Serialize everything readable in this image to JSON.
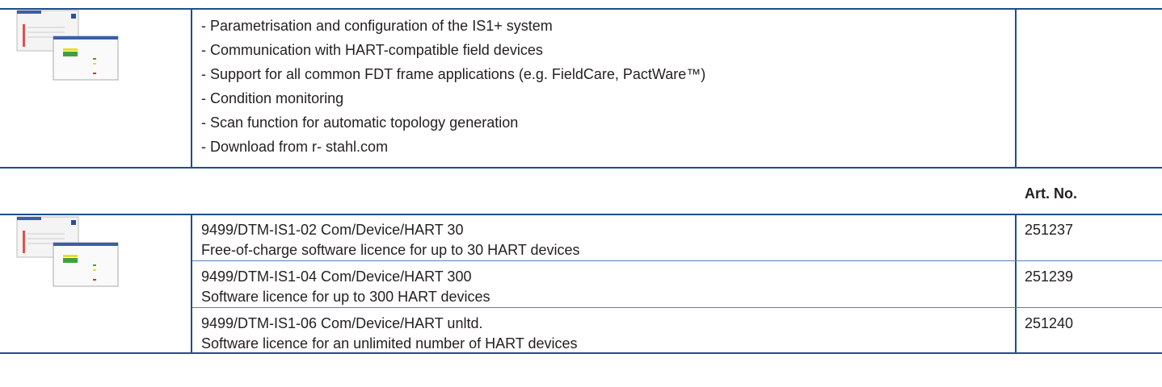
{
  "features": {
    "items": [
      "- Parametrisation and configuration of the IS1+ system",
      "- Communication with HART-compatible field devices",
      "- Support for all common FDT frame applications (e.g. FieldCare, PactWare™)",
      "- Condition monitoring",
      "- Scan function for automatic topology generation",
      "- Download from r- stahl.com"
    ]
  },
  "products": {
    "header": "Art. No.",
    "rows": [
      {
        "name": "9499/DTM-IS1-02 Com/Device/HART 30",
        "description": "Free-of-charge software licence for up to 30 HART devices",
        "art_no": "251237"
      },
      {
        "name": "9499/DTM-IS1-04 Com/Device/HART 300",
        "description": "Software licence for up to 300 HART devices",
        "art_no": "251239"
      },
      {
        "name": "9499/DTM-IS1-06 Com/Device/HART unltd.",
        "description": "Software licence for an unlimited number of HART devices",
        "art_no": "251240"
      }
    ]
  }
}
